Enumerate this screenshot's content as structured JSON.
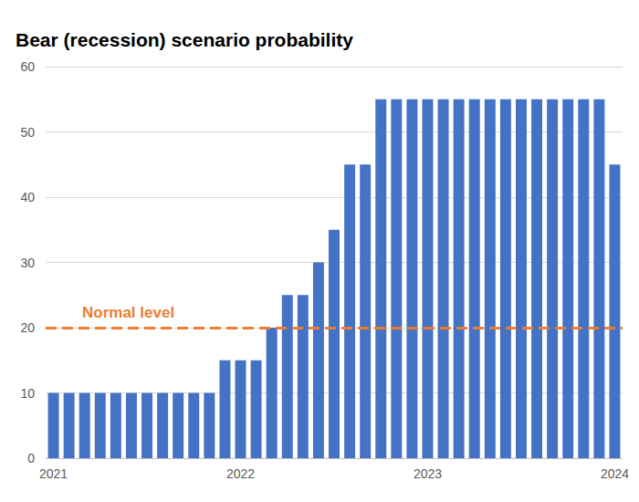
{
  "chart_data": {
    "type": "bar",
    "title": "Bear (recession) scenario probability",
    "categories": [
      "2021",
      null,
      null,
      null,
      null,
      null,
      null,
      null,
      null,
      null,
      null,
      null,
      "2022",
      null,
      null,
      null,
      null,
      null,
      null,
      null,
      null,
      null,
      null,
      null,
      "2023",
      null,
      null,
      null,
      null,
      null,
      null,
      null,
      null,
      null,
      null,
      null,
      "2024"
    ],
    "values": [
      10,
      10,
      10,
      10,
      10,
      10,
      10,
      10,
      10,
      10,
      10,
      15,
      15,
      15,
      20,
      25,
      25,
      30,
      35,
      45,
      45,
      55,
      55,
      55,
      55,
      55,
      55,
      55,
      55,
      55,
      55,
      55,
      55,
      55,
      55,
      55,
      45
    ],
    "color": "#4472c4",
    "ylim": [
      0,
      60
    ],
    "yticks": [
      0,
      10,
      20,
      30,
      40,
      50,
      60
    ],
    "grid": true,
    "hline": {
      "y": 20,
      "label": "Normal level",
      "color": "#ed7d31",
      "line_style": "dashed"
    }
  }
}
